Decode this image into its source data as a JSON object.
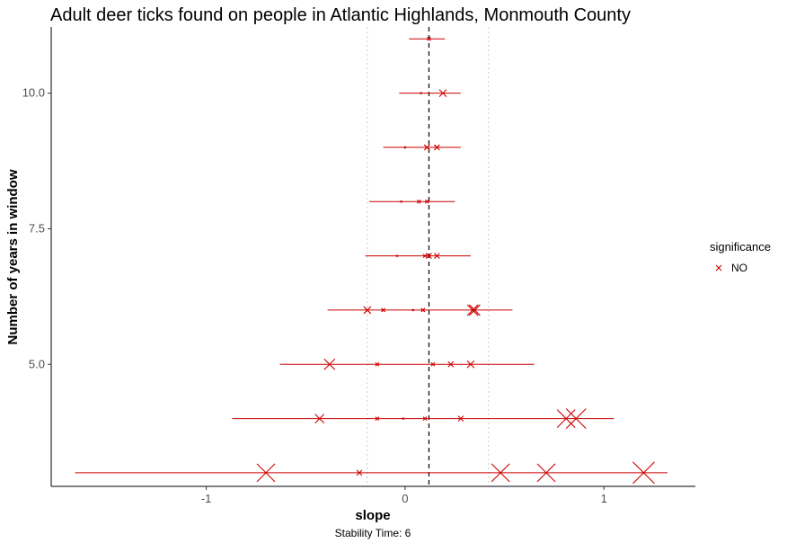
{
  "chart_data": {
    "type": "scatter",
    "title": "Adult deer ticks found on people in Atlantic Highlands, Monmouth County",
    "xlabel": "slope",
    "ylabel": "Number of years in window",
    "caption": "Stability Time: 6",
    "xlim": [
      -1.78,
      1.46
    ],
    "ylim": [
      2.75,
      11.22
    ],
    "xticks": [
      -1,
      0,
      1
    ],
    "yticks": [
      5.0,
      7.5,
      10.0
    ],
    "xtick_labels": [
      "-1",
      "0",
      "1"
    ],
    "ytick_labels": [
      "5.0",
      "7.5",
      "10.0"
    ],
    "reference_line": 0.12,
    "stability_bounds": [
      -0.19,
      0.42
    ],
    "grid": false,
    "legend": {
      "title": "significance",
      "position": "right",
      "entries": [
        {
          "label": "NO",
          "color": "#cc0000",
          "marker": "x"
        }
      ]
    },
    "series": [
      {
        "y": 3,
        "range": [
          -1.66,
          1.32
        ],
        "slopes": [
          -0.7,
          -0.23,
          0.48,
          0.71,
          1.2
        ],
        "sizes": [
          10,
          3,
          10,
          10,
          12
        ]
      },
      {
        "y": 4,
        "range": [
          -0.87,
          1.05
        ],
        "slopes": [
          -0.43,
          -0.14,
          -0.01,
          0.1,
          0.28,
          0.81,
          0.86
        ],
        "sizes": [
          5,
          2,
          1,
          2,
          3,
          10,
          11
        ]
      },
      {
        "y": 5,
        "range": [
          -0.63,
          0.65
        ],
        "slopes": [
          -0.38,
          -0.14,
          0.14,
          0.23,
          0.33
        ],
        "sizes": [
          6,
          2,
          2,
          3,
          4
        ]
      },
      {
        "y": 6,
        "range": [
          -0.39,
          0.54
        ],
        "slopes": [
          -0.19,
          -0.11,
          0.04,
          0.09,
          0.34,
          0.35
        ],
        "sizes": [
          4,
          2,
          1,
          2,
          6,
          6
        ]
      },
      {
        "y": 7,
        "range": [
          -0.2,
          0.33
        ],
        "slopes": [
          -0.04,
          0.1,
          0.12,
          0.16
        ],
        "sizes": [
          1,
          2,
          3,
          3
        ]
      },
      {
        "y": 8,
        "range": [
          -0.18,
          0.25
        ],
        "slopes": [
          -0.02,
          0.07,
          0.11
        ],
        "sizes": [
          1,
          2,
          2
        ]
      },
      {
        "y": 9,
        "range": [
          -0.11,
          0.28
        ],
        "slopes": [
          0.0,
          0.11,
          0.16
        ],
        "sizes": [
          1,
          3,
          3
        ]
      },
      {
        "y": 10,
        "range": [
          -0.03,
          0.28
        ],
        "slopes": [
          0.08,
          0.19
        ],
        "sizes": [
          1,
          4
        ]
      },
      {
        "y": 11,
        "range": [
          0.02,
          0.2
        ],
        "slopes": [
          0.12
        ],
        "sizes": [
          2
        ]
      }
    ]
  }
}
